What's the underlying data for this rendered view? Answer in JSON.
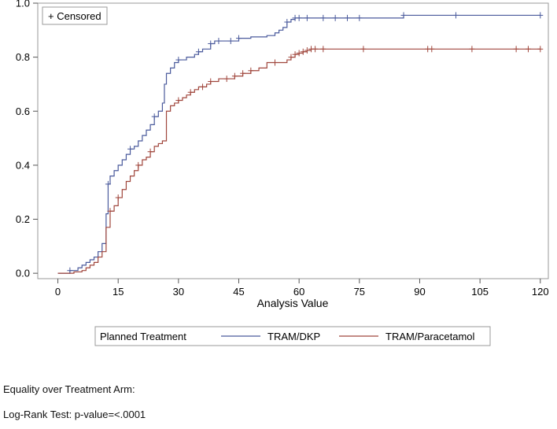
{
  "chart_data": {
    "type": "line",
    "step": true,
    "xlabel": "Analysis Value",
    "ylabel": "",
    "xlim": [
      -5,
      122
    ],
    "ylim": [
      -0.02,
      1.0
    ],
    "x_ticks": [
      0,
      15,
      30,
      45,
      60,
      75,
      90,
      105,
      120
    ],
    "y_ticks": [
      0.0,
      0.2,
      0.4,
      0.6,
      0.8,
      1.0
    ],
    "y_tick_labels": [
      "0.0",
      "0.2",
      "0.4",
      "0.6",
      "0.8",
      "1.0"
    ],
    "inset_legend": "+ Censored",
    "legend_title": "Planned Treatment",
    "series": [
      {
        "name": "TRAM/DKP",
        "color": "#4a5a9c",
        "x": [
          0,
          3,
          5,
          6,
          7,
          8,
          9,
          10,
          11,
          12,
          12.5,
          13,
          14,
          15,
          16,
          17,
          18,
          19,
          20,
          21,
          22,
          23,
          24,
          25,
          26,
          26.5,
          27,
          28,
          29,
          30,
          32,
          34,
          35,
          36,
          38,
          39,
          41,
          43,
          45,
          46,
          48,
          50,
          51,
          52,
          53,
          54,
          55,
          56,
          57,
          58,
          59,
          60,
          62,
          64,
          66,
          68,
          70,
          72,
          75,
          78,
          80,
          83,
          85,
          86,
          88,
          120
        ],
        "y": [
          0,
          0.01,
          0.02,
          0.03,
          0.04,
          0.05,
          0.06,
          0.08,
          0.11,
          0.22,
          0.33,
          0.36,
          0.38,
          0.4,
          0.42,
          0.44,
          0.46,
          0.47,
          0.49,
          0.51,
          0.53,
          0.55,
          0.58,
          0.6,
          0.63,
          0.7,
          0.74,
          0.76,
          0.78,
          0.79,
          0.8,
          0.81,
          0.82,
          0.83,
          0.85,
          0.86,
          0.86,
          0.86,
          0.87,
          0.87,
          0.875,
          0.875,
          0.875,
          0.88,
          0.88,
          0.89,
          0.9,
          0.91,
          0.93,
          0.94,
          0.945,
          0.945,
          0.945,
          0.945,
          0.945,
          0.945,
          0.945,
          0.945,
          0.945,
          0.945,
          0.945,
          0.945,
          0.945,
          0.955,
          0.955,
          0.955
        ],
        "censored_x": [
          3,
          12.5,
          18,
          24,
          30,
          35,
          38,
          40,
          43,
          45,
          57,
          59,
          60,
          62,
          66,
          69,
          72,
          75,
          86,
          99,
          120
        ],
        "censored_y": [
          0.01,
          0.33,
          0.46,
          0.58,
          0.79,
          0.82,
          0.85,
          0.86,
          0.86,
          0.87,
          0.93,
          0.945,
          0.945,
          0.945,
          0.945,
          0.945,
          0.945,
          0.945,
          0.955,
          0.955,
          0.955
        ]
      },
      {
        "name": "TRAM/Paracetamol",
        "color": "#a0463c",
        "x": [
          0,
          4,
          6,
          7,
          8,
          9,
          10,
          11,
          12,
          13,
          14,
          15,
          16,
          17,
          18,
          19,
          20,
          21,
          22,
          23,
          24,
          25,
          26,
          27,
          28,
          29,
          30,
          31,
          32,
          33,
          34,
          35,
          36,
          37,
          38,
          40,
          42,
          44,
          46,
          48,
          50,
          52,
          54,
          56,
          57,
          58,
          59,
          60,
          61,
          62,
          63,
          64,
          66,
          70,
          80,
          120
        ],
        "y": [
          0,
          0.005,
          0.01,
          0.02,
          0.03,
          0.04,
          0.06,
          0.08,
          0.17,
          0.23,
          0.25,
          0.28,
          0.31,
          0.34,
          0.36,
          0.38,
          0.4,
          0.42,
          0.43,
          0.45,
          0.47,
          0.48,
          0.49,
          0.6,
          0.62,
          0.63,
          0.64,
          0.65,
          0.66,
          0.67,
          0.68,
          0.69,
          0.69,
          0.7,
          0.71,
          0.72,
          0.72,
          0.73,
          0.74,
          0.75,
          0.76,
          0.78,
          0.78,
          0.78,
          0.79,
          0.8,
          0.81,
          0.815,
          0.82,
          0.825,
          0.83,
          0.83,
          0.83,
          0.83,
          0.83,
          0.83
        ],
        "censored_x": [
          13,
          15,
          20,
          23,
          30,
          33,
          36,
          38,
          42,
          44,
          46,
          48,
          54,
          58,
          59,
          60,
          61,
          62,
          63,
          64,
          66,
          76,
          92,
          93,
          103,
          114,
          117,
          120
        ],
        "censored_y": [
          0.23,
          0.28,
          0.4,
          0.45,
          0.64,
          0.67,
          0.69,
          0.71,
          0.72,
          0.73,
          0.74,
          0.75,
          0.78,
          0.8,
          0.81,
          0.815,
          0.82,
          0.825,
          0.83,
          0.83,
          0.83,
          0.83,
          0.83,
          0.83,
          0.83,
          0.83,
          0.83,
          0.83
        ]
      }
    ]
  },
  "footer": {
    "line1": "Equality over Treatment Arm:",
    "line2": "Log-Rank Test: p-value=<.0001"
  }
}
